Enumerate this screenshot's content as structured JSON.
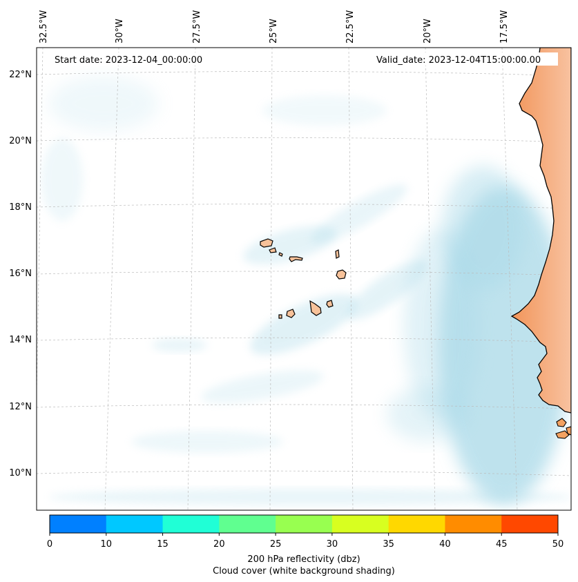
{
  "map": {
    "start_date": "Start date: 2023-12-04_00:00:00",
    "valid_date": "Valid_date: 2023-12-04T15:00:00.00",
    "lon_labels": [
      "32.5°W",
      "30°W",
      "27.5°W",
      "25°W",
      "22.5°W",
      "20°W",
      "17.5°W"
    ],
    "lat_labels": [
      "22°N",
      "20°N",
      "18°N",
      "16°N",
      "14°N",
      "12°N",
      "10°N"
    ]
  },
  "colorbar": {
    "ticks": [
      "0",
      "10",
      "15",
      "20",
      "25",
      "30",
      "35",
      "40",
      "45",
      "50"
    ],
    "colors": [
      "#0080ff",
      "#00c8ff",
      "#20ffd6",
      "#60ff90",
      "#98ff50",
      "#d8ff20",
      "#ffd800",
      "#ff8c00",
      "#ff4800"
    ],
    "label_line1": "200 hPa reflectivity (dbz)",
    "label_line2": "Cloud cover (white background shading)"
  },
  "colors": {
    "land": "#f4a261",
    "cloud": "#a9d9e8",
    "gridline": "#bbbbbb"
  }
}
